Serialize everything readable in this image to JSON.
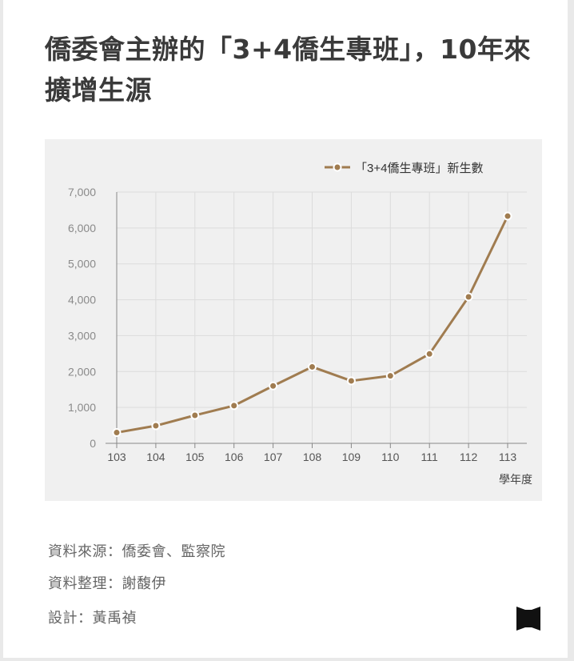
{
  "title": "僑委會主辦的「3+4僑生專班」，10年來擴增生源",
  "chart_data": {
    "type": "line",
    "categories": [
      "103",
      "104",
      "105",
      "106",
      "107",
      "108",
      "109",
      "110",
      "111",
      "112",
      "113"
    ],
    "series": [
      {
        "name": "「3+4僑生專班」新生數",
        "values": [
          300,
          490,
          780,
          1050,
          1600,
          2130,
          1740,
          1880,
          2490,
          4080,
          6330
        ]
      }
    ],
    "xlabel": "學年度",
    "ylabel": "",
    "ylim": [
      0,
      7000
    ],
    "yticks": [
      0,
      1000,
      2000,
      3000,
      4000,
      5000,
      6000,
      7000
    ],
    "ytick_labels": [
      "0",
      "1,000",
      "2,000",
      "3,000",
      "4,000",
      "5,000",
      "6,000",
      "7,000"
    ],
    "grid": true,
    "legend_position": "top-right",
    "colors": {
      "line": "#a07c50",
      "marker_stroke": "#ffffff",
      "grid": "#dcdcdc",
      "axis": "#888888",
      "background": "#f0f0f0"
    }
  },
  "footer": {
    "source": "資料來源：僑委會、監察院",
    "compiled": "資料整理：謝馥伊",
    "design": "設計：黃禹禎"
  },
  "logo_icon": "flag-logo-icon"
}
